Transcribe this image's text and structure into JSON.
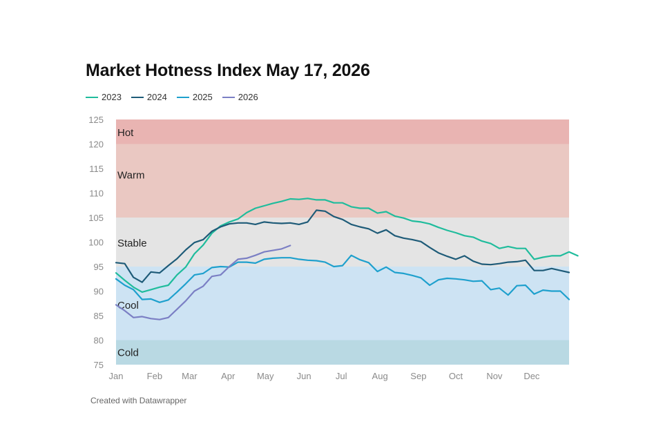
{
  "title": "Market Hotness Index May 17, 2026",
  "footer": "Created with Datawrapper",
  "chart_data": {
    "type": "line",
    "title": "Market Hotness Index May 17, 2026",
    "xlabel": "",
    "ylabel": "",
    "xlim": [
      0,
      52
    ],
    "ylim": [
      75,
      125
    ],
    "x_ticks": [
      {
        "label": "Jan",
        "week": 0
      },
      {
        "label": "Feb",
        "week": 4.43
      },
      {
        "label": "Mar",
        "week": 8.43
      },
      {
        "label": "Apr",
        "week": 12.86
      },
      {
        "label": "May",
        "week": 17.14
      },
      {
        "label": "Jun",
        "week": 21.57
      },
      {
        "label": "Jul",
        "week": 25.86
      },
      {
        "label": "Aug",
        "week": 30.29
      },
      {
        "label": "Sep",
        "week": 34.71
      },
      {
        "label": "Oct",
        "week": 39
      },
      {
        "label": "Nov",
        "week": 43.43
      },
      {
        "label": "Dec",
        "week": 47.71
      }
    ],
    "y_ticks": [
      125,
      120,
      115,
      110,
      105,
      100,
      95,
      90,
      85,
      80,
      75
    ],
    "zones": [
      {
        "name": "Hot",
        "from": 120,
        "to": 125,
        "color": "#e9b4b2"
      },
      {
        "name": "Warm",
        "from": 105,
        "to": 120,
        "color": "#eac8c2"
      },
      {
        "name": "Stable",
        "from": 95,
        "to": 105,
        "color": "#e4e4e4"
      },
      {
        "name": "Cool",
        "from": 80,
        "to": 95,
        "color": "#cde3f3"
      },
      {
        "name": "Cold",
        "from": 75,
        "to": 80,
        "color": "#b9d9e3"
      }
    ],
    "legend_position": "top-left",
    "grid": false,
    "series": [
      {
        "name": "2023",
        "color": "#1fbc9c",
        "values": [
          93.7,
          92.2,
          90.8,
          89.8,
          90.3,
          90.8,
          91.2,
          93.3,
          94.9,
          97.6,
          99.4,
          101.8,
          103.3,
          104.1,
          104.7,
          106.0,
          106.9,
          107.4,
          107.9,
          108.3,
          108.8,
          108.7,
          108.9,
          108.6,
          108.6,
          108.0,
          108.0,
          107.2,
          106.9,
          106.9,
          105.9,
          106.2,
          105.3,
          104.9,
          104.3,
          104.1,
          103.7,
          103.0,
          102.4,
          101.9,
          101.3,
          101.0,
          100.2,
          99.7,
          98.7,
          99.1,
          98.7,
          98.7,
          96.5,
          96.9,
          97.2,
          97.2,
          98.0,
          97.2
        ]
      },
      {
        "name": "2024",
        "color": "#1e5b78",
        "values": [
          95.8,
          95.6,
          92.8,
          91.8,
          93.9,
          93.7,
          95.2,
          96.6,
          98.4,
          99.9,
          100.5,
          102.2,
          103.1,
          103.7,
          103.9,
          103.9,
          103.6,
          104.1,
          103.9,
          103.8,
          103.9,
          103.6,
          104.1,
          106.5,
          106.3,
          105.2,
          104.6,
          103.6,
          103.1,
          102.7,
          101.8,
          102.5,
          101.3,
          100.8,
          100.5,
          100.1,
          98.9,
          97.8,
          97.1,
          96.5,
          97.2,
          96.1,
          95.5,
          95.4,
          95.6,
          95.9,
          96.0,
          96.3,
          94.2,
          94.2,
          94.6,
          94.2,
          93.8
        ]
      },
      {
        "name": "2025",
        "color": "#1ea0cd",
        "values": [
          92.5,
          91.2,
          90.3,
          88.3,
          88.4,
          87.7,
          88.2,
          89.8,
          91.5,
          93.3,
          93.6,
          94.8,
          95.0,
          94.9,
          95.9,
          95.9,
          95.7,
          96.5,
          96.7,
          96.8,
          96.8,
          96.5,
          96.3,
          96.2,
          95.9,
          95.0,
          95.2,
          97.3,
          96.4,
          95.8,
          94.0,
          94.9,
          93.8,
          93.6,
          93.2,
          92.7,
          91.2,
          92.3,
          92.6,
          92.5,
          92.3,
          92.0,
          92.1,
          90.3,
          90.6,
          89.2,
          91.1,
          91.2,
          89.4,
          90.2,
          90.0,
          90.0,
          88.3
        ]
      },
      {
        "name": "2026",
        "color": "#7b7fc4",
        "values": [
          87.2,
          86.0,
          84.6,
          84.8,
          84.4,
          84.2,
          84.6,
          86.3,
          88.0,
          90.0,
          91.0,
          93.0,
          93.3,
          95.0,
          96.5,
          96.7,
          97.3,
          98.0,
          98.3,
          98.6,
          99.3
        ]
      }
    ]
  }
}
